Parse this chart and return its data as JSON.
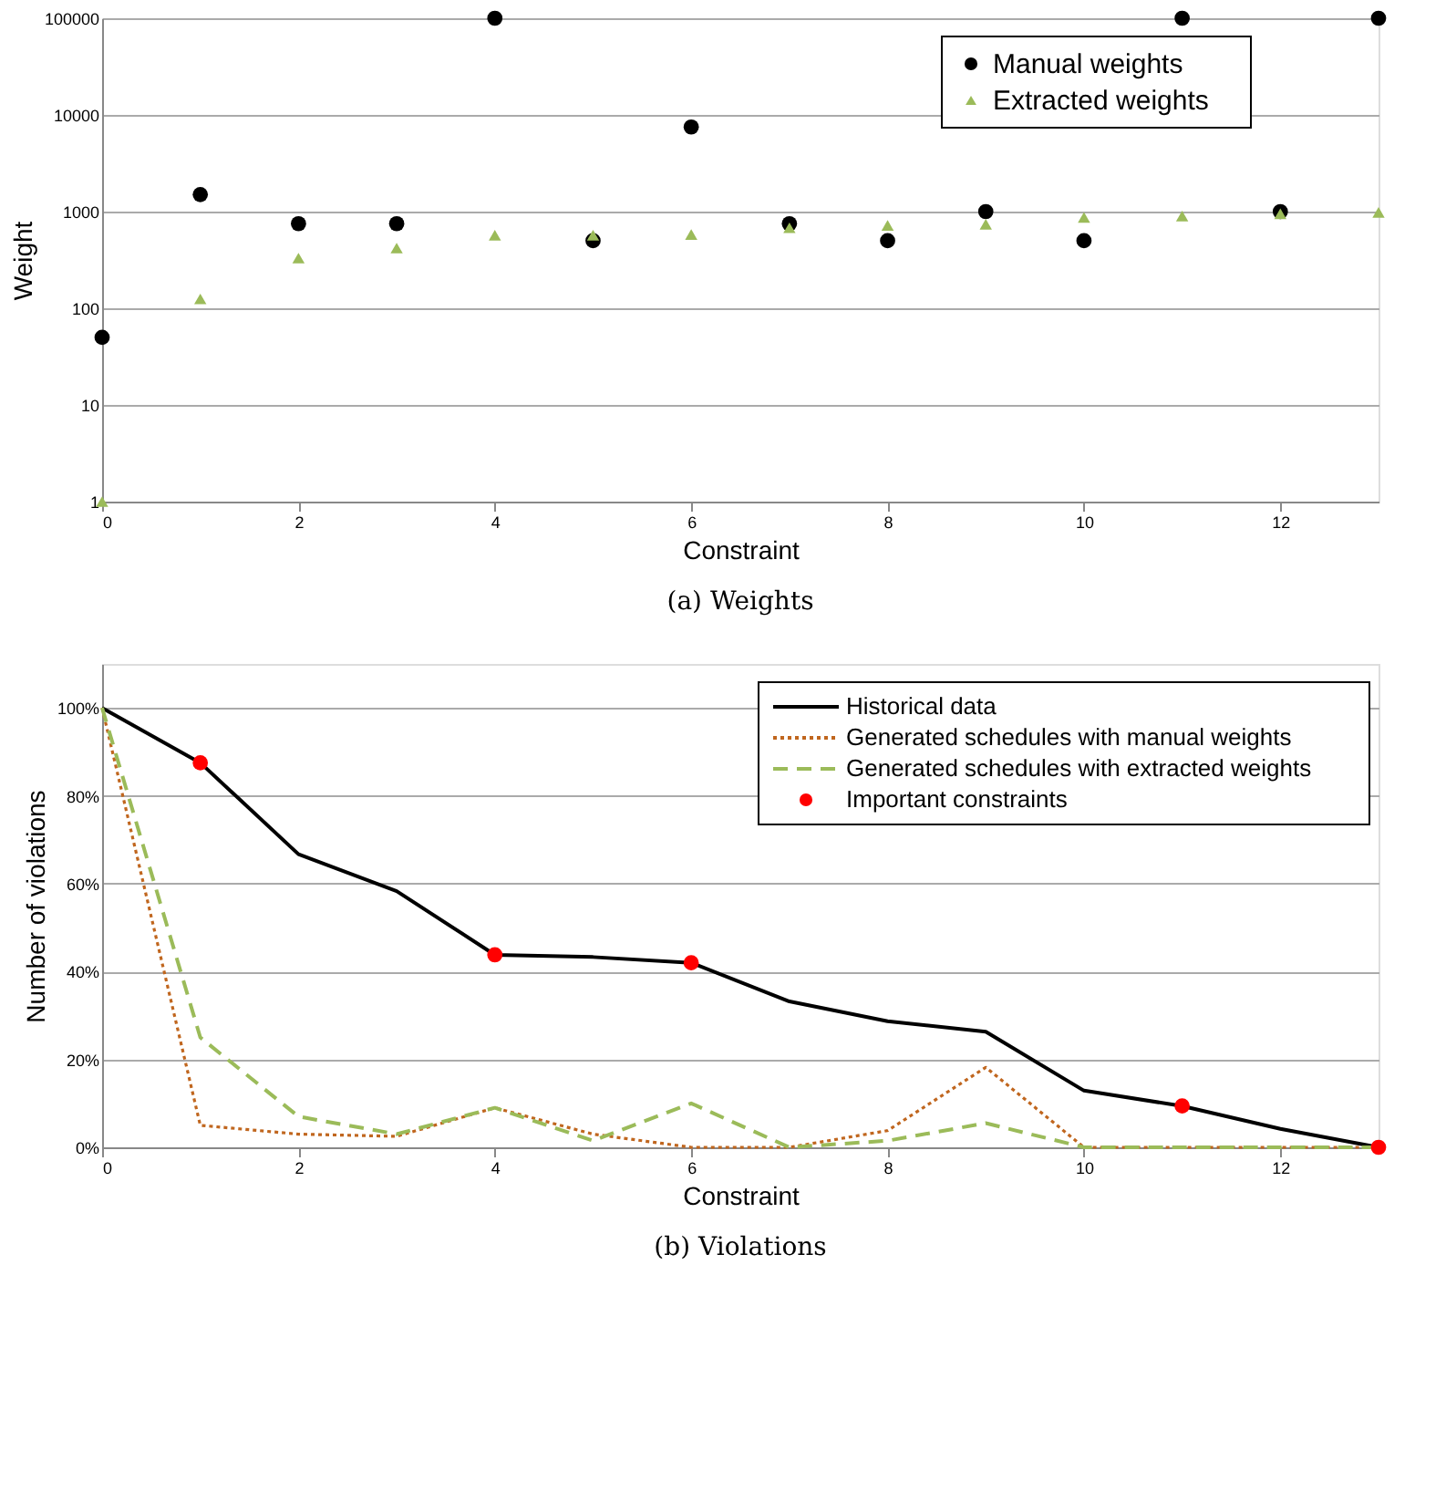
{
  "chart_data": [
    {
      "type": "scatter",
      "title": "(a) Weights",
      "xlabel": "Constraint",
      "ylabel": "Weight",
      "log": true,
      "grid": "y",
      "legend": "top right",
      "x": [
        0,
        1,
        2,
        3,
        4,
        5,
        6,
        7,
        8,
        9,
        10,
        11,
        12,
        13
      ],
      "xlim": [
        0,
        13
      ],
      "xticks": [
        0,
        2,
        4,
        6,
        8,
        10,
        12
      ],
      "ylim": [
        1,
        100000
      ],
      "yticks": [
        1,
        10,
        100,
        1000,
        10000,
        100000
      ],
      "series": [
        {
          "name": "Manual weights",
          "color": "#000000",
          "marker": "circle",
          "values": [
            50,
            1500,
            750,
            750,
            100000,
            500,
            7500,
            750,
            500,
            1000,
            500,
            100000,
            1000,
            100000
          ]
        },
        {
          "name": "Extracted weights",
          "color": "#9bbb59",
          "marker": "triangle",
          "values": [
            1,
            125,
            330,
            420,
            570,
            570,
            580,
            680,
            720,
            740,
            870,
            900,
            950,
            980
          ]
        }
      ]
    },
    {
      "type": "line",
      "title": "(b) Violations",
      "xlabel": "Constraint",
      "ylabel": "Number of violations",
      "grid": "y",
      "legend": "top right",
      "x": [
        0,
        1,
        2,
        3,
        4,
        5,
        6,
        7,
        8,
        9,
        10,
        11,
        12,
        13
      ],
      "xlim": [
        0,
        13
      ],
      "xticks": [
        0,
        2,
        4,
        6,
        8,
        10,
        12
      ],
      "ylim": [
        0,
        1.1
      ],
      "yticks": [
        {
          "value": 0,
          "label": "0%"
        },
        {
          "value": 0.2,
          "label": "20%"
        },
        {
          "value": 0.4,
          "label": "40%"
        },
        {
          "value": 0.6,
          "label": "60%"
        },
        {
          "value": 0.8,
          "label": "80%"
        },
        {
          "value": 1,
          "label": "100%"
        }
      ],
      "series": [
        {
          "name": "Historical data",
          "color": "#000000",
          "line_style": "solid",
          "marker": "none",
          "values": [
            1,
            0.875,
            0.667,
            0.583,
            0.438,
            0.433,
            0.42,
            0.332,
            0.287,
            0.263,
            0.129,
            0.094,
            0.042,
            0
          ]
        },
        {
          "name": "Generated schedules with manual weights",
          "color": "#c0661e",
          "line_style": "dotted",
          "marker": "none",
          "values": [
            1,
            0.05,
            0.03,
            0.025,
            0.09,
            0.03,
            0,
            0,
            0.038,
            0.182,
            0,
            0,
            0,
            0
          ]
        },
        {
          "name": "Generated schedules with extracted weights",
          "color": "#9bbb59",
          "line_style": "dashed",
          "marker": "none",
          "values": [
            1,
            0.25,
            0.07,
            0.03,
            0.09,
            0.015,
            0.1,
            0,
            0.015,
            0.055,
            0,
            0,
            0,
            0
          ]
        },
        {
          "name": "Important constraints",
          "type": "scatter",
          "color": "#ff0000",
          "marker": "circle",
          "x": [
            1,
            4,
            6,
            11,
            13
          ],
          "values": [
            0.875,
            0.438,
            0.42,
            0.094,
            0
          ]
        }
      ]
    }
  ]
}
